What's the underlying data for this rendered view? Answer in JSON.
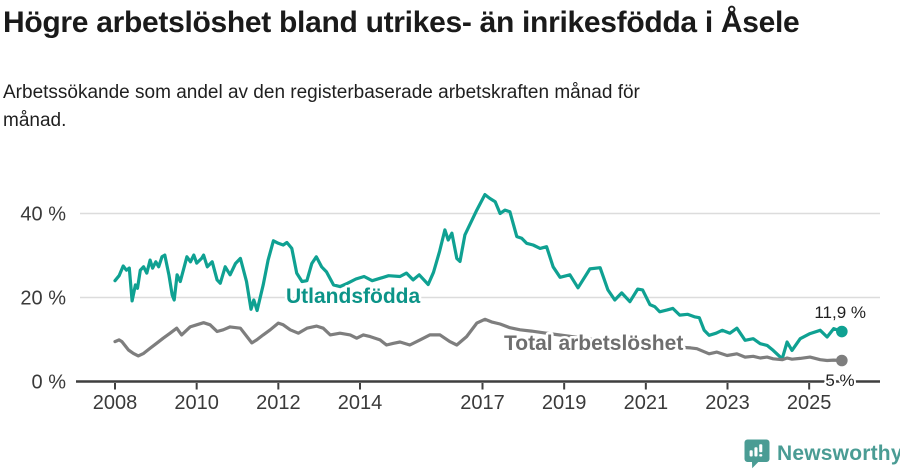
{
  "header": {
    "title": "Högre arbetslöshet bland utrikes- än inrikesfödda i Åsele",
    "subtitle": "Arbetssökande som andel av den registerbaserade arbetskraften månad för månad.",
    "subtitle_lines": [
      "Arbetssökande som andel av den registerbaserade arbetskraften månad för",
      "månad."
    ]
  },
  "footer": {
    "brand": "Newsworthy",
    "logo_icon": "newsworthy-speech-bubble-bar-chart-icon",
    "brand_color": "#4a9c94"
  },
  "colors": {
    "accent_teal": "#0fa192",
    "label_teal": "#0c9488",
    "series_gray": "#7e7e7e",
    "label_gray": "#6e6e6e",
    "axis": "#3f3f3f",
    "grid": "#dcdcdc",
    "text": "#1f1f1f"
  },
  "chart_data": {
    "type": "line",
    "title": "Högre arbetslöshet bland utrikes- än inrikesfödda i Åsele",
    "subtitle": "Arbetssökande som andel av den registerbaserade arbetskraften månad för månad.",
    "unit": "%",
    "grid": true,
    "legend_position": "inline-labels",
    "x_axis": {
      "ticks": [
        2008,
        2010,
        2012,
        2014,
        2017,
        2019,
        2021,
        2023,
        2025
      ],
      "range": [
        2008,
        2025.85
      ]
    },
    "y_axis": {
      "ticks": [
        {
          "value": 0,
          "label": "0 %"
        },
        {
          "value": 20,
          "label": "20 %"
        },
        {
          "value": 40,
          "label": "40 %"
        }
      ],
      "range": [
        0,
        47
      ]
    },
    "series": [
      {
        "name": "Utlandsfödda",
        "color": "#0fa192",
        "end_label": "11,9 %",
        "end_value": 11.9,
        "points": [
          [
            2008.0,
            24.0
          ],
          [
            2008.1,
            25.2
          ],
          [
            2008.2,
            27.5
          ],
          [
            2008.28,
            26.5
          ],
          [
            2008.35,
            27.0
          ],
          [
            2008.42,
            19.2
          ],
          [
            2008.5,
            23.0
          ],
          [
            2008.55,
            22.2
          ],
          [
            2008.62,
            26.5
          ],
          [
            2008.7,
            27.3
          ],
          [
            2008.78,
            25.8
          ],
          [
            2008.86,
            28.9
          ],
          [
            2008.92,
            27.0
          ],
          [
            2009.0,
            28.5
          ],
          [
            2009.07,
            27.3
          ],
          [
            2009.15,
            29.7
          ],
          [
            2009.22,
            30.1
          ],
          [
            2009.32,
            25.4
          ],
          [
            2009.4,
            20.6
          ],
          [
            2009.45,
            19.4
          ],
          [
            2009.52,
            25.4
          ],
          [
            2009.6,
            23.8
          ],
          [
            2009.76,
            29.7
          ],
          [
            2009.85,
            28.5
          ],
          [
            2009.93,
            30.1
          ],
          [
            2010.0,
            28.2
          ],
          [
            2010.12,
            29.3
          ],
          [
            2010.17,
            30.1
          ],
          [
            2010.26,
            27.3
          ],
          [
            2010.38,
            28.5
          ],
          [
            2010.5,
            24.2
          ],
          [
            2010.58,
            23.4
          ],
          [
            2010.7,
            27.3
          ],
          [
            2010.82,
            25.4
          ],
          [
            2010.95,
            28.1
          ],
          [
            2011.07,
            29.3
          ],
          [
            2011.22,
            23.8
          ],
          [
            2011.33,
            17.2
          ],
          [
            2011.4,
            19.4
          ],
          [
            2011.48,
            16.9
          ],
          [
            2011.63,
            23.0
          ],
          [
            2011.75,
            28.9
          ],
          [
            2011.88,
            33.5
          ],
          [
            2012.0,
            32.9
          ],
          [
            2012.12,
            32.5
          ],
          [
            2012.21,
            33.1
          ],
          [
            2012.33,
            31.7
          ],
          [
            2012.45,
            25.8
          ],
          [
            2012.58,
            23.8
          ],
          [
            2012.7,
            24.0
          ],
          [
            2012.82,
            28.1
          ],
          [
            2012.93,
            29.7
          ],
          [
            2013.06,
            27.3
          ],
          [
            2013.18,
            26.1
          ],
          [
            2013.35,
            23.0
          ],
          [
            2013.51,
            22.6
          ],
          [
            2013.7,
            23.4
          ],
          [
            2013.9,
            24.4
          ],
          [
            2014.1,
            25.0
          ],
          [
            2014.3,
            24.0
          ],
          [
            2014.5,
            24.6
          ],
          [
            2014.7,
            25.2
          ],
          [
            2014.98,
            25.0
          ],
          [
            2015.14,
            25.8
          ],
          [
            2015.3,
            24.2
          ],
          [
            2015.45,
            25.4
          ],
          [
            2015.67,
            23.1
          ],
          [
            2015.8,
            26.0
          ],
          [
            2015.95,
            31.0
          ],
          [
            2016.08,
            36.1
          ],
          [
            2016.16,
            33.7
          ],
          [
            2016.25,
            35.3
          ],
          [
            2016.37,
            29.3
          ],
          [
            2016.45,
            28.6
          ],
          [
            2016.57,
            34.9
          ],
          [
            2016.86,
            40.8
          ],
          [
            2017.06,
            44.5
          ],
          [
            2017.18,
            43.6
          ],
          [
            2017.31,
            42.8
          ],
          [
            2017.43,
            40.0
          ],
          [
            2017.55,
            40.8
          ],
          [
            2017.67,
            40.4
          ],
          [
            2017.84,
            34.5
          ],
          [
            2017.96,
            34.1
          ],
          [
            2018.08,
            32.9
          ],
          [
            2018.24,
            32.5
          ],
          [
            2018.41,
            31.7
          ],
          [
            2018.57,
            32.1
          ],
          [
            2018.73,
            27.3
          ],
          [
            2018.9,
            24.8
          ],
          [
            2019.14,
            25.4
          ],
          [
            2019.34,
            22.3
          ],
          [
            2019.63,
            26.8
          ],
          [
            2019.88,
            27.1
          ],
          [
            2020.07,
            21.8
          ],
          [
            2020.24,
            19.4
          ],
          [
            2020.41,
            21.1
          ],
          [
            2020.61,
            19.0
          ],
          [
            2020.8,
            22.0
          ],
          [
            2020.92,
            21.8
          ],
          [
            2021.1,
            18.3
          ],
          [
            2021.22,
            17.8
          ],
          [
            2021.34,
            16.6
          ],
          [
            2021.51,
            17.0
          ],
          [
            2021.66,
            17.4
          ],
          [
            2021.83,
            15.8
          ],
          [
            2022.02,
            16.0
          ],
          [
            2022.19,
            15.4
          ],
          [
            2022.31,
            15.2
          ],
          [
            2022.43,
            12.2
          ],
          [
            2022.55,
            11.0
          ],
          [
            2022.72,
            11.5
          ],
          [
            2022.87,
            12.2
          ],
          [
            2023.06,
            11.5
          ],
          [
            2023.23,
            12.7
          ],
          [
            2023.43,
            9.8
          ],
          [
            2023.63,
            10.2
          ],
          [
            2023.8,
            9.0
          ],
          [
            2023.97,
            8.6
          ],
          [
            2024.12,
            7.4
          ],
          [
            2024.34,
            5.4
          ],
          [
            2024.46,
            9.4
          ],
          [
            2024.58,
            7.4
          ],
          [
            2024.78,
            10.2
          ],
          [
            2025.02,
            11.4
          ],
          [
            2025.27,
            12.2
          ],
          [
            2025.44,
            10.6
          ],
          [
            2025.6,
            12.6
          ],
          [
            2025.8,
            11.9
          ]
        ]
      },
      {
        "name": "Total arbetslöshet",
        "color": "#7e7e7e",
        "end_label": "5 %",
        "end_value": 5.0,
        "points": [
          [
            2008.0,
            9.5
          ],
          [
            2008.1,
            9.9
          ],
          [
            2008.17,
            9.5
          ],
          [
            2008.33,
            7.5
          ],
          [
            2008.45,
            6.7
          ],
          [
            2008.57,
            6.1
          ],
          [
            2008.7,
            6.7
          ],
          [
            2008.86,
            7.9
          ],
          [
            2009.02,
            9.1
          ],
          [
            2009.18,
            10.3
          ],
          [
            2009.35,
            11.5
          ],
          [
            2009.51,
            12.7
          ],
          [
            2009.63,
            11.1
          ],
          [
            2009.84,
            13.0
          ],
          [
            2010.0,
            13.5
          ],
          [
            2010.17,
            14.0
          ],
          [
            2010.33,
            13.5
          ],
          [
            2010.5,
            11.9
          ],
          [
            2010.65,
            12.3
          ],
          [
            2010.82,
            13.0
          ],
          [
            2011.07,
            12.7
          ],
          [
            2011.35,
            9.2
          ],
          [
            2011.47,
            9.9
          ],
          [
            2011.63,
            11.1
          ],
          [
            2011.8,
            12.3
          ],
          [
            2012.0,
            13.9
          ],
          [
            2012.12,
            13.5
          ],
          [
            2012.29,
            12.3
          ],
          [
            2012.49,
            11.5
          ],
          [
            2012.7,
            12.7
          ],
          [
            2012.94,
            13.2
          ],
          [
            2013.1,
            12.7
          ],
          [
            2013.27,
            11.1
          ],
          [
            2013.51,
            11.5
          ],
          [
            2013.76,
            11.1
          ],
          [
            2013.92,
            10.3
          ],
          [
            2014.08,
            11.1
          ],
          [
            2014.25,
            10.7
          ],
          [
            2014.49,
            9.9
          ],
          [
            2014.65,
            8.7
          ],
          [
            2014.82,
            9.1
          ],
          [
            2014.98,
            9.4
          ],
          [
            2015.22,
            8.7
          ],
          [
            2015.47,
            9.9
          ],
          [
            2015.71,
            11.1
          ],
          [
            2015.96,
            11.1
          ],
          [
            2016.2,
            9.5
          ],
          [
            2016.37,
            8.7
          ],
          [
            2016.61,
            10.7
          ],
          [
            2016.86,
            13.9
          ],
          [
            2017.06,
            14.8
          ],
          [
            2017.22,
            14.2
          ],
          [
            2017.43,
            13.7
          ],
          [
            2017.67,
            12.8
          ],
          [
            2017.92,
            12.3
          ],
          [
            2018.2,
            12.0
          ],
          [
            2018.5,
            11.6
          ],
          [
            2018.8,
            11.2
          ],
          [
            2019.1,
            10.8
          ],
          [
            2019.4,
            10.4
          ],
          [
            2019.7,
            10.0
          ],
          [
            2020.0,
            10.3
          ],
          [
            2020.3,
            10.0
          ],
          [
            2020.6,
            9.6
          ],
          [
            2020.9,
            9.2
          ],
          [
            2021.2,
            8.8
          ],
          [
            2021.5,
            8.5
          ],
          [
            2021.8,
            8.2
          ],
          [
            2022.1,
            8.0
          ],
          [
            2022.25,
            7.8
          ],
          [
            2022.55,
            6.6
          ],
          [
            2022.74,
            7.0
          ],
          [
            2022.99,
            6.2
          ],
          [
            2023.23,
            6.6
          ],
          [
            2023.43,
            5.8
          ],
          [
            2023.63,
            6.0
          ],
          [
            2023.8,
            5.6
          ],
          [
            2023.97,
            5.8
          ],
          [
            2024.12,
            5.4
          ],
          [
            2024.34,
            5.2
          ],
          [
            2024.46,
            5.6
          ],
          [
            2024.58,
            5.3
          ],
          [
            2024.78,
            5.5
          ],
          [
            2025.02,
            5.8
          ],
          [
            2025.27,
            5.2
          ],
          [
            2025.44,
            5.0
          ],
          [
            2025.6,
            5.1
          ],
          [
            2025.8,
            5.0
          ]
        ]
      }
    ]
  }
}
